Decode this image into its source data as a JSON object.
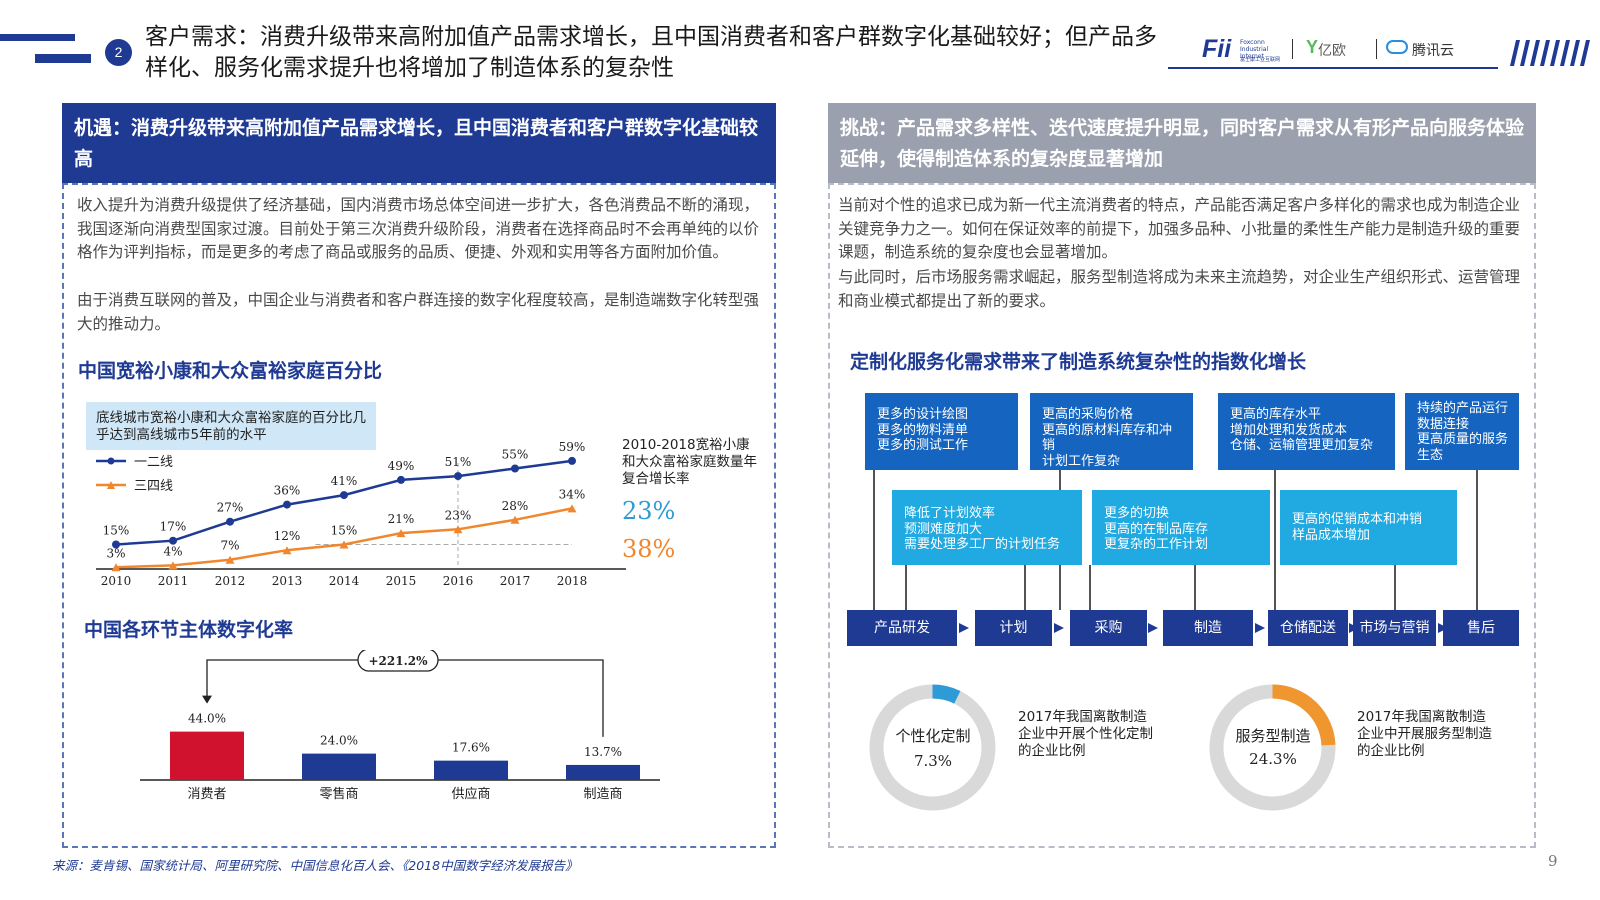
{
  "header": {
    "number": "2",
    "title": "客户需求：消费升级带来高附加值产品需求增长，且中国消费者和客户群数字化基础较好；但产品多样化、服务化需求提升也将增加了制造体系的复杂性",
    "logos": {
      "foxconn": "Fii",
      "foxconn_sub": "Foxconn Industrial Internet",
      "foxconn_cn": "富士康工业互联网",
      "yiou": "亿欧",
      "tencent": "腾讯云"
    }
  },
  "left": {
    "heading": "机遇：消费升级带来高附加值产品需求增长，且中国消费者和客户群数字化基础较高",
    "paragraphs": [
      "收入提升为消费升级提供了经济基础，国内消费市场总体空间进一步扩大，各色消费品不断的涌现，我国逐渐向消费型国家过渡。目前处于第三次消费升级阶段，消费者在选择商品时不会再单纯的以价格作为评判指标，而是更多的考虑了商品或服务的品质、便捷、外观和实用等各方面附加价值。",
      "由于消费互联网的普及，中国企业与消费者和客户群连接的数字化程度较高，是制造端数字化转型强大的推动力。"
    ],
    "chart1_title": "中国宽裕小康和大众富裕家庭百分比",
    "chart1_callout": "底线城市宽裕小康和大众富裕家庭的百分比几乎达到高线城市5年前的水平",
    "cagr_label": "2010-2018宽裕小康和大众富裕家庭数量年复合增长率",
    "cagr_values": [
      "23%",
      "38%"
    ],
    "chart2_title": "中国各环节主体数字化率",
    "chart2_growth": "+221.2%"
  },
  "right": {
    "heading": "挑战：产品需求多样性、迭代速度提升明显，同时客户需求从有形产品向服务体验延伸，使得制造体系的复杂度显著增加",
    "paragraphs": [
      "当前对个性的追求已成为新一代主流消费者的特点，产品能否满足客户多样化的需求也成为制造企业关键竞争力之一。如何在保证效率的前提下，加强多品种、小批量的柔性生产能力是制造升级的重要课题，制造系统的复杂度也会显著增加。",
      "与此同时，后市场服务需求崛起，服务型制造将成为未来主流趋势，对企业生产组织形式、运营管理和商业模式都提出了新的要求。"
    ],
    "diagram_title": "定制化服务化需求带来了制造系统复杂性的指数化增长",
    "top_boxes": [
      [
        "更多的设计绘图",
        "更多的物料清单",
        "更多的测试工作"
      ],
      [
        "更高的采购价格",
        "更高的原材料库存和冲销",
        "计划工作复杂"
      ],
      [
        "更高的库存水平",
        "增加处理和发货成本",
        "仓储、运输管理更加复杂"
      ],
      [
        "持续的产品运行",
        "数据连接",
        "更高质量的服务",
        "生态"
      ]
    ],
    "mid_boxes": [
      [
        "降低了计划效率",
        "预测难度加大",
        "需要处理多工厂的计划任务"
      ],
      [
        "更多的切换",
        "更高的在制品库存",
        "更复杂的工作计划"
      ],
      [
        "更高的促销成本和冲销",
        "样品成本增加"
      ]
    ],
    "process": [
      "产品研发",
      "计划",
      "采购",
      "制造",
      "仓储配送",
      "市场与营销",
      "售后"
    ],
    "donuts": [
      {
        "label": "个性化定制",
        "value_text": "7.3%",
        "value": 7.3,
        "color": "#2e9bd6",
        "desc": "2017年我国离散制造企业中开展个性化定制的企业比例"
      },
      {
        "label": "服务型制造",
        "value_text": "24.3%",
        "value": 24.3,
        "color": "#f0962e",
        "desc": "2017年我国离散制造企业中开展服务型制造的企业比例"
      }
    ]
  },
  "footer": {
    "source": "来源：麦肯锡、国家统计局、阿里研究院、中国信息化百人会、《2018中国数字经济发展报告》",
    "page": "9"
  },
  "chart_data": [
    {
      "type": "line",
      "title": "中国宽裕小康和大众富裕家庭百分比",
      "x": [
        "2010",
        "2011",
        "2012",
        "2013",
        "2014",
        "2015",
        "2016",
        "2017",
        "2018"
      ],
      "series": [
        {
          "name": "一二线",
          "values": [
            15,
            17,
            27,
            36,
            41,
            49,
            51,
            55,
            59
          ],
          "labels": [
            "15%",
            "17%",
            "27%",
            "36%",
            "41%",
            "49%",
            "51%",
            "55%",
            "59%"
          ],
          "color": "#1f3a93"
        },
        {
          "name": "三四线",
          "values": [
            3,
            4,
            7,
            12,
            15,
            21,
            23,
            28,
            34
          ],
          "labels": [
            "3%",
            "4%",
            "7%",
            "12%",
            "15%",
            "21%",
            "23%",
            "28%",
            "34%"
          ],
          "color": "#f0862e"
        }
      ],
      "ylim": [
        0,
        65
      ],
      "legend": "top-left",
      "grid": false
    },
    {
      "type": "bar",
      "title": "中国各环节主体数字化率",
      "categories": [
        "消费者",
        "零售商",
        "供应商",
        "制造商"
      ],
      "values": [
        44.0,
        24.0,
        17.6,
        13.7
      ],
      "labels": [
        "44.0%",
        "24.0%",
        "17.6%",
        "13.7%"
      ],
      "colors": [
        "#d0122f",
        "#1f3a93",
        "#1f3a93",
        "#1f3a93"
      ],
      "ylim": [
        0,
        50
      ]
    }
  ]
}
